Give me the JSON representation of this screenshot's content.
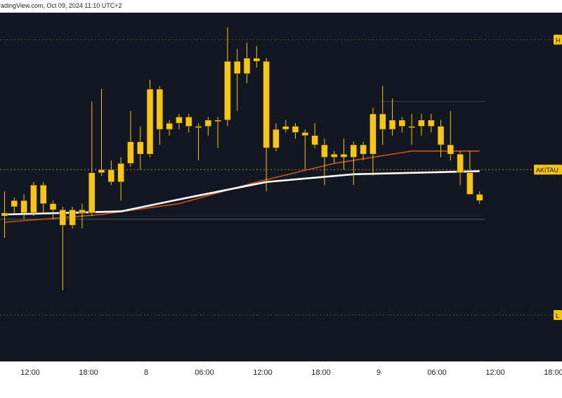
{
  "header": {
    "watermark": "radingView.com, Oct 09, 2024 11:10 UTC+2"
  },
  "colors": {
    "background": "#131722",
    "candle": "#f5c518",
    "ma_fast": "#c8561d",
    "ma_slow": "#ffffff",
    "label_bg": "#f5c518"
  },
  "chart_data": {
    "type": "candlestick",
    "title": "",
    "xlabel": "",
    "ylabel": "",
    "x_tick_labels": [
      "12:00",
      "18:00",
      "8",
      "06:00",
      "12:00",
      "18:00",
      "9",
      "06:00",
      "12:00",
      "18:00"
    ],
    "price_labels": [
      "H",
      "AKITAU",
      "L"
    ],
    "candle_scale": "relative units 0-100, no price axis values shown",
    "candles": [
      [
        38,
        37,
        45,
        30
      ],
      [
        40,
        42,
        43,
        38
      ],
      [
        42,
        38,
        44,
        36
      ],
      [
        38,
        47,
        48,
        37
      ],
      [
        47,
        41,
        48,
        38
      ],
      [
        41,
        39,
        42,
        36
      ],
      [
        39,
        34,
        40,
        13
      ],
      [
        34,
        39,
        40,
        33
      ],
      [
        39,
        38,
        41,
        33
      ],
      [
        38,
        51,
        74,
        37
      ],
      [
        51,
        52,
        78,
        50
      ],
      [
        52,
        48,
        55,
        47
      ],
      [
        48,
        54,
        56,
        42
      ],
      [
        54,
        61,
        71,
        53
      ],
      [
        61,
        57,
        66,
        52
      ],
      [
        57,
        78,
        81,
        56
      ],
      [
        78,
        65,
        79,
        60
      ],
      [
        65,
        67,
        68,
        63
      ],
      [
        67,
        69,
        70,
        65
      ],
      [
        69,
        66,
        70,
        64
      ],
      [
        66,
        66,
        67,
        55
      ],
      [
        66,
        68,
        69,
        63
      ],
      [
        68,
        68,
        69,
        59
      ],
      [
        68,
        87,
        98,
        66
      ],
      [
        87,
        83,
        91,
        71
      ],
      [
        83,
        88,
        93,
        80
      ],
      [
        88,
        87,
        92,
        85
      ],
      [
        87,
        59,
        88,
        45
      ],
      [
        59,
        65,
        67,
        58
      ],
      [
        65,
        66,
        68,
        64
      ],
      [
        66,
        64,
        67,
        62
      ],
      [
        64,
        63,
        65,
        52
      ],
      [
        63,
        60,
        67,
        59
      ],
      [
        60,
        56,
        62,
        47
      ],
      [
        56,
        57,
        58,
        54
      ],
      [
        57,
        56,
        62,
        52
      ],
      [
        56,
        60,
        61,
        47
      ],
      [
        60,
        57,
        61,
        55
      ],
      [
        57,
        70,
        72,
        50
      ],
      [
        70,
        65,
        79,
        60
      ],
      [
        65,
        68,
        75,
        63
      ],
      [
        68,
        66,
        69,
        64
      ],
      [
        66,
        66,
        70,
        60
      ],
      [
        66,
        68,
        70,
        63
      ],
      [
        68,
        66,
        70,
        64
      ],
      [
        66,
        60,
        68,
        56
      ],
      [
        60,
        57,
        71,
        55
      ],
      [
        57,
        51,
        58,
        47
      ],
      [
        51,
        44,
        58,
        44
      ],
      [
        44,
        42,
        45,
        41
      ]
    ],
    "moving_averages": [
      {
        "color": "orange",
        "values": [
          [
            0,
            35
          ],
          [
            10,
            37.5
          ],
          [
            18,
            41
          ],
          [
            26,
            48
          ],
          [
            34,
            54
          ],
          [
            42,
            58
          ],
          [
            49,
            58
          ]
        ]
      },
      {
        "color": "white",
        "values": [
          [
            0,
            37.5
          ],
          [
            12,
            38.5
          ],
          [
            19,
            43
          ],
          [
            27,
            48
          ],
          [
            36,
            50.5
          ],
          [
            49,
            51.5
          ]
        ]
      }
    ],
    "horizontal_levels": [
      {
        "name": "H",
        "value": 94
      },
      {
        "name": "L",
        "value": 5
      },
      {
        "name": "AKITAU",
        "value": 52
      }
    ],
    "grid": false,
    "legend": "none"
  }
}
